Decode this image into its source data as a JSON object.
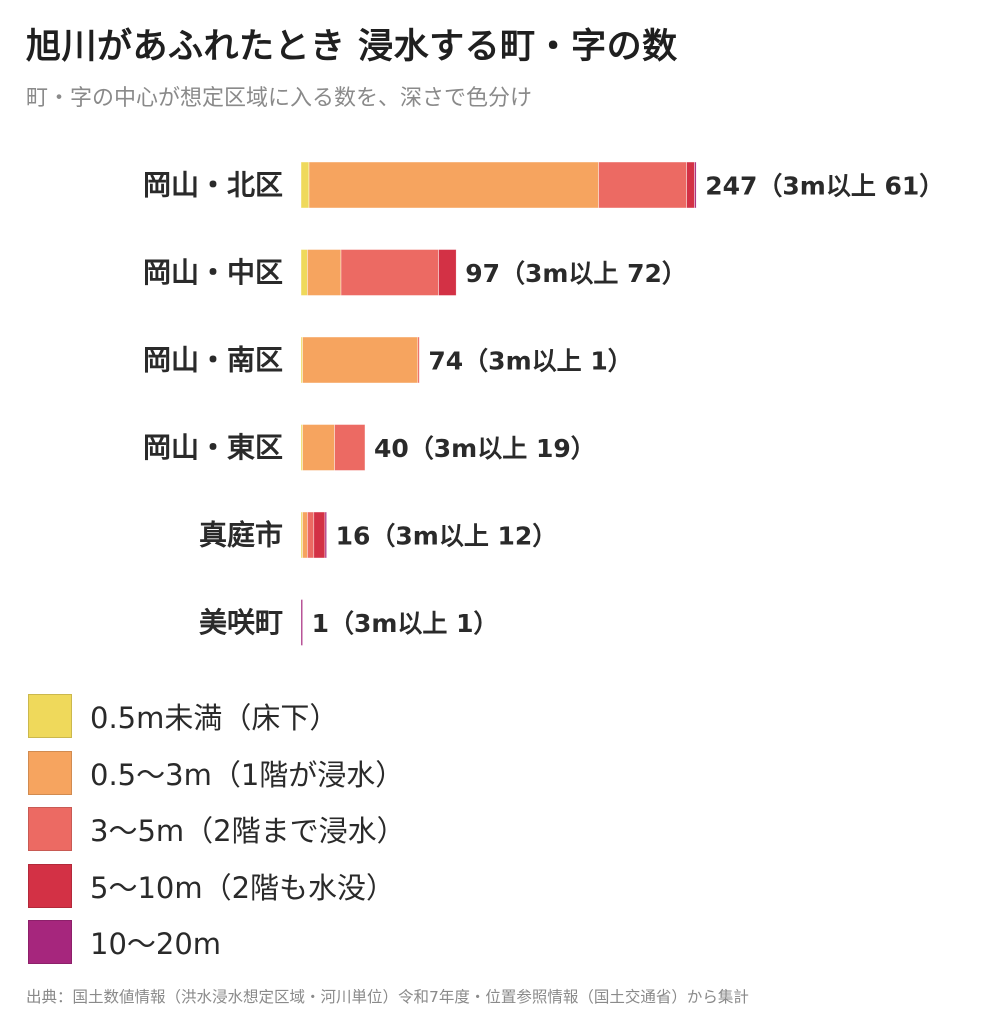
{
  "title": "旭川があふれたとき 浸水する町・字の数",
  "subtitle": "町・字の中心が想定区域に入る数を、深さで色分け",
  "source": "出典：国土数値情報（洪水浸水想定区域・河川単位）令和7年度・位置参照情報（国土交通省）から集計",
  "legend": [
    {
      "label": "0.5m未満（床下）",
      "color": "#efd95b"
    },
    {
      "label": "0.5〜3m（1階が浸水）",
      "color": "#f6a45f"
    },
    {
      "label": "3〜5m（2階まで浸水）",
      "color": "#ec6a63"
    },
    {
      "label": "5〜10m（2階も水没）",
      "color": "#d33145"
    },
    {
      "label": "10〜20m",
      "color": "#a6267d"
    }
  ],
  "chart_data": {
    "type": "bar",
    "orientation": "horizontal",
    "stacked": true,
    "categories": [
      "岡山・北区",
      "岡山・中区",
      "岡山・南区",
      "岡山・東区",
      "真庭市",
      "美咲町"
    ],
    "series": [
      {
        "name": "0.5m未満（床下）",
        "color": "#efd95b",
        "values": [
          5,
          4,
          1,
          1,
          1,
          0
        ]
      },
      {
        "name": "0.5〜3m（1階が浸水）",
        "color": "#f6a45f",
        "values": [
          181,
          21,
          72,
          20,
          3,
          0
        ]
      },
      {
        "name": "3〜5m（2階まで浸水）",
        "color": "#ec6a63",
        "values": [
          55,
          61,
          1,
          19,
          4,
          0
        ]
      },
      {
        "name": "5〜10m（2階も水没）",
        "color": "#d33145",
        "values": [
          5,
          11,
          0,
          0,
          7,
          0
        ]
      },
      {
        "name": "10〜20m",
        "color": "#a6267d",
        "values": [
          1,
          0,
          0,
          0,
          1,
          1
        ]
      }
    ],
    "totals": [
      247,
      97,
      74,
      40,
      16,
      1
    ],
    "value_labels": [
      "247（3m以上 61）",
      "97（3m以上 72）",
      "74（3m以上 1）",
      "40（3m以上 19）",
      "16（3m以上 12）",
      "1（3m以上 1）"
    ],
    "legend_position": "bottom-left",
    "grid": false
  }
}
